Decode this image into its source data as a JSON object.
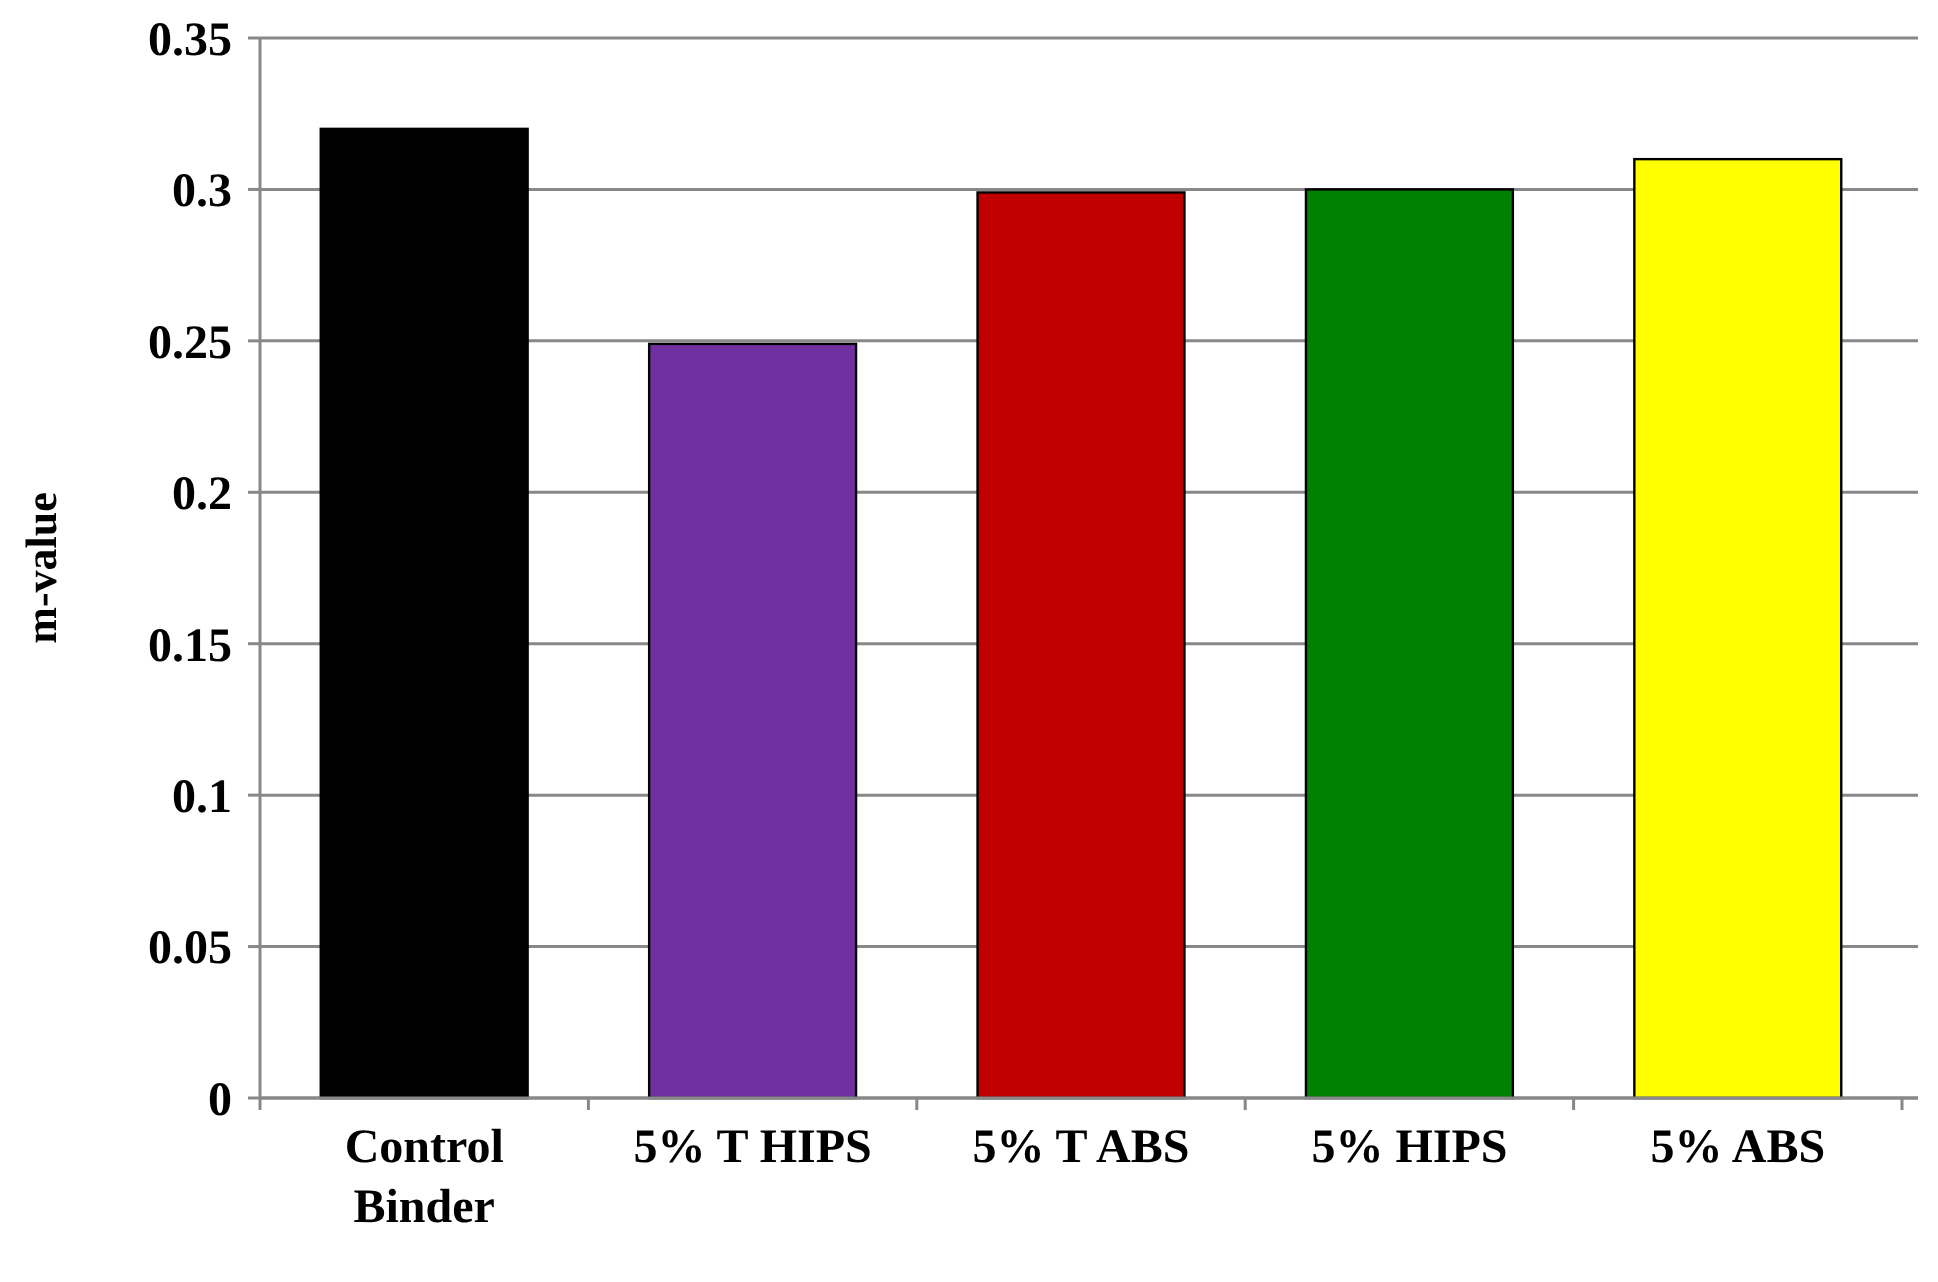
{
  "chart_data": {
    "type": "bar",
    "ylabel": "m-value",
    "categories": [
      "Control\nBinder",
      "5% T HIPS",
      "5% T ABS",
      "5% HIPS",
      "5% ABS"
    ],
    "values": [
      0.32,
      0.249,
      0.299,
      0.3,
      0.31
    ],
    "colors": [
      "#000000",
      "#7030a0",
      "#c00000",
      "#008000",
      "#ffff00"
    ],
    "ylim": [
      0,
      0.35
    ],
    "yticks": [
      0,
      0.05,
      0.1,
      0.15,
      0.2,
      0.25,
      0.3,
      0.35
    ],
    "grid": "y"
  }
}
